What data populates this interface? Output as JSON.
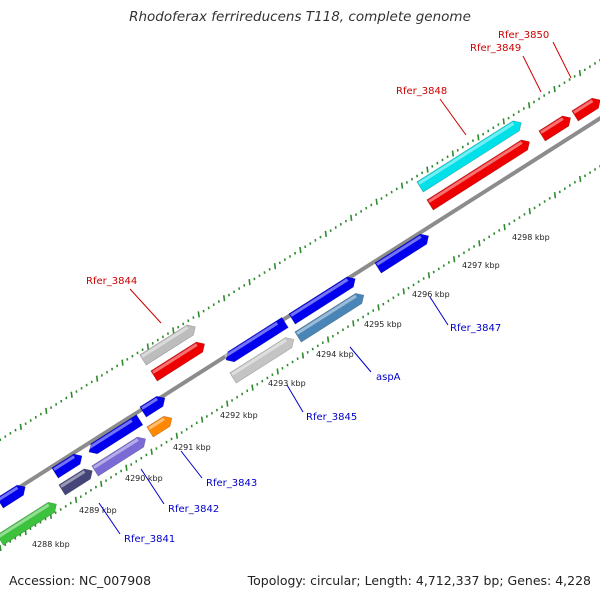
{
  "title": "Rhodoferax ferrireducens T118, complete genome",
  "footer": {
    "accession": "Accession: NC_007908",
    "stats": "Topology: circular; Length: 4,712,337 bp; Genes: 4,228"
  },
  "colors": {
    "backbone": "#8c8c8c",
    "tick": "#2e8b2e",
    "forward_cds": "#0000ee",
    "reverse_cds": "#0000ee",
    "rna": "#ee0000",
    "label_blue": "#0000cc",
    "label_red": "#cc0000"
  },
  "tick_labels": [
    "4288 kbp",
    "4289 kbp",
    "4290 kbp",
    "4291 kbp",
    "4292 kbp",
    "4293 kbp",
    "4294 kbp",
    "4295 kbp",
    "4296 kbp",
    "4297 kbp",
    "4298 kbp"
  ],
  "gene_labels": [
    {
      "text": "Rfer_3850",
      "color": "red"
    },
    {
      "text": "Rfer_3849",
      "color": "red"
    },
    {
      "text": "Rfer_3848",
      "color": "red"
    },
    {
      "text": "Rfer_3844",
      "color": "red"
    },
    {
      "text": "Rfer_3847",
      "color": "blue"
    },
    {
      "text": "aspA",
      "color": "blue"
    },
    {
      "text": "Rfer_3845",
      "color": "blue"
    },
    {
      "text": "Rfer_3843",
      "color": "blue"
    },
    {
      "text": "Rfer_3842",
      "color": "blue"
    },
    {
      "text": "Rfer_3841",
      "color": "blue"
    }
  ]
}
